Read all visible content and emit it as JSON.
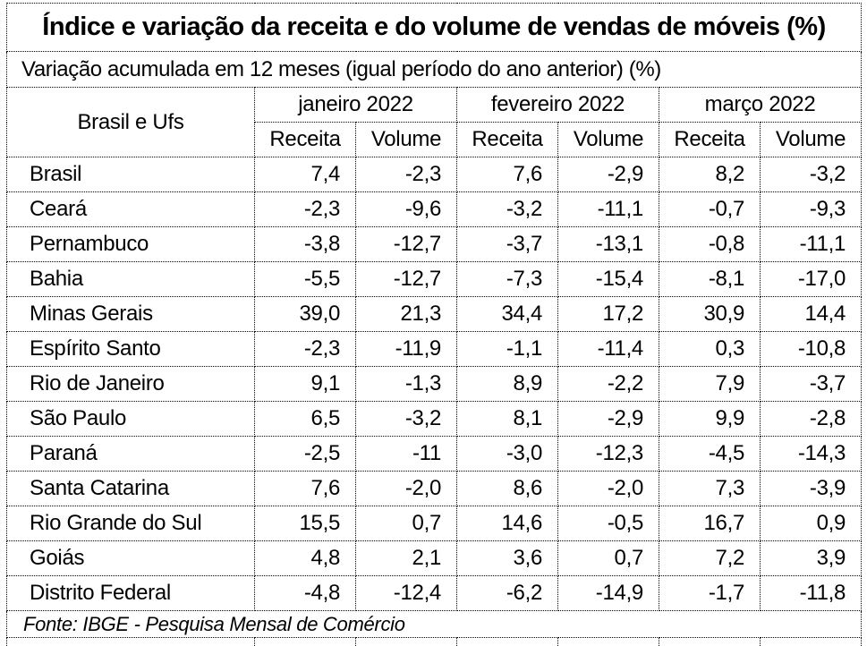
{
  "title": "Índice e variação da receita e do volume de vendas de móveis (%)",
  "subtitle": "Variação acumulada em 12 meses (igual período do ano anterior) (%)",
  "table": {
    "corner_header": "Brasil e Ufs",
    "month_groups": [
      {
        "label": "janeiro 2022"
      },
      {
        "label": "fevereiro 2022"
      },
      {
        "label": "março 2022"
      }
    ],
    "sub_headers": [
      "Receita",
      "Volume"
    ],
    "rows": [
      {
        "region": "Brasil",
        "values": [
          "7,4",
          "-2,3",
          "7,6",
          "-2,9",
          "8,2",
          "-3,2"
        ]
      },
      {
        "region": "Ceará",
        "values": [
          "-2,3",
          "-9,6",
          "-3,2",
          "-11,1",
          "-0,7",
          "-9,3"
        ]
      },
      {
        "region": "Pernambuco",
        "values": [
          "-3,8",
          "-12,7",
          "-3,7",
          "-13,1",
          "-0,8",
          "-11,1"
        ]
      },
      {
        "region": "Bahia",
        "values": [
          "-5,5",
          "-12,7",
          "-7,3",
          "-15,4",
          "-8,1",
          "-17,0"
        ]
      },
      {
        "region": "Minas Gerais",
        "values": [
          "39,0",
          "21,3",
          "34,4",
          "17,2",
          "30,9",
          "14,4"
        ]
      },
      {
        "region": "Espírito Santo",
        "values": [
          "-2,3",
          "-11,9",
          "-1,1",
          "-11,4",
          "0,3",
          "-10,8"
        ]
      },
      {
        "region": "Rio de Janeiro",
        "values": [
          "9,1",
          "-1,3",
          "8,9",
          "-2,2",
          "7,9",
          "-3,7"
        ]
      },
      {
        "region": "São Paulo",
        "values": [
          "6,5",
          "-3,2",
          "8,1",
          "-2,9",
          "9,9",
          "-2,8"
        ]
      },
      {
        "region": "Paraná",
        "values": [
          "-2,5",
          "-11",
          "-3,0",
          "-12,3",
          "-4,5",
          "-14,3"
        ]
      },
      {
        "region": "Santa Catarina",
        "values": [
          "7,6",
          "-2,0",
          "8,6",
          "-2,0",
          "7,3",
          "-3,9"
        ]
      },
      {
        "region": "Rio Grande do Sul",
        "values": [
          "15,5",
          "0,7",
          "14,6",
          "-0,5",
          "16,7",
          "0,9"
        ]
      },
      {
        "region": "Goiás",
        "values": [
          "4,8",
          "2,1",
          "3,6",
          "0,7",
          "7,2",
          "3,9"
        ]
      },
      {
        "region": "Distrito Federal",
        "values": [
          "-4,8",
          "-12,4",
          "-6,2",
          "-14,9",
          "-1,7",
          "-11,8"
        ]
      }
    ]
  },
  "footer": "Fonte: IBGE - Pesquisa Mensal de Comércio",
  "colors": {
    "border": "#000000",
    "text": "#000000",
    "background": "#ffffff"
  },
  "chart_data": {
    "type": "table",
    "title": "Índice e variação da receita e do volume de vendas de móveis (%)",
    "subtitle": "Variação acumulada em 12 meses (igual período do ano anterior) (%)",
    "column_groups": [
      "janeiro 2022",
      "fevereiro 2022",
      "março 2022"
    ],
    "columns": [
      "Brasil e Ufs",
      "janeiro 2022 Receita",
      "janeiro 2022 Volume",
      "fevereiro 2022 Receita",
      "fevereiro 2022 Volume",
      "março 2022 Receita",
      "março 2022 Volume"
    ],
    "rows": [
      [
        "Brasil",
        7.4,
        -2.3,
        7.6,
        -2.9,
        8.2,
        -3.2
      ],
      [
        "Ceará",
        -2.3,
        -9.6,
        -3.2,
        -11.1,
        -0.7,
        -9.3
      ],
      [
        "Pernambuco",
        -3.8,
        -12.7,
        -3.7,
        -13.1,
        -0.8,
        -11.1
      ],
      [
        "Bahia",
        -5.5,
        -12.7,
        -7.3,
        -15.4,
        -8.1,
        -17.0
      ],
      [
        "Minas Gerais",
        39.0,
        21.3,
        34.4,
        17.2,
        30.9,
        14.4
      ],
      [
        "Espírito Santo",
        -2.3,
        -11.9,
        -1.1,
        -11.4,
        0.3,
        -10.8
      ],
      [
        "Rio de Janeiro",
        9.1,
        -1.3,
        8.9,
        -2.2,
        7.9,
        -3.7
      ],
      [
        "São Paulo",
        6.5,
        -3.2,
        8.1,
        -2.9,
        9.9,
        -2.8
      ],
      [
        "Paraná",
        -2.5,
        -11.0,
        -3.0,
        -12.3,
        -4.5,
        -14.3
      ],
      [
        "Santa Catarina",
        7.6,
        -2.0,
        8.6,
        -2.0,
        7.3,
        -3.9
      ],
      [
        "Rio Grande do Sul",
        15.5,
        0.7,
        14.6,
        -0.5,
        16.7,
        0.9
      ],
      [
        "Goiás",
        4.8,
        2.1,
        3.6,
        0.7,
        7.2,
        3.9
      ],
      [
        "Distrito Federal",
        -4.8,
        -12.4,
        -6.2,
        -14.9,
        -1.7,
        -11.8
      ]
    ],
    "source": "Fonte: IBGE - Pesquisa Mensal de Comércio"
  }
}
